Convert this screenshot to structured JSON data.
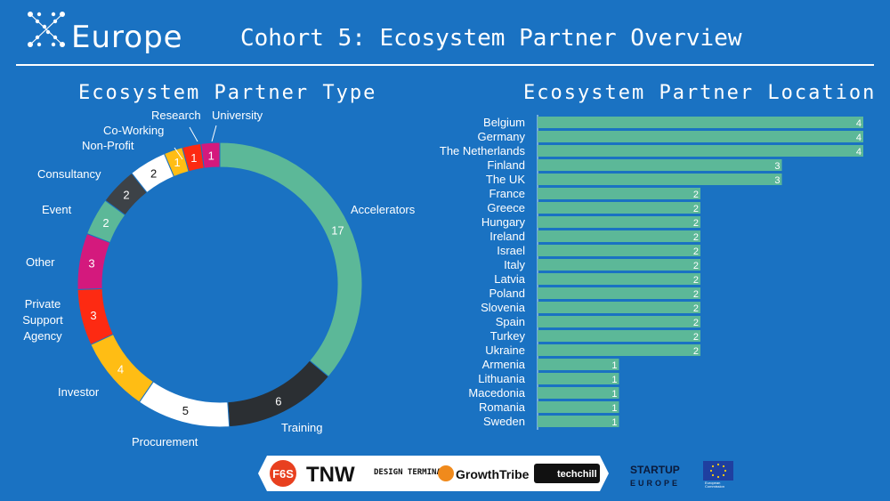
{
  "header": {
    "logo_text": "Europe",
    "title": "Cohort 5: Ecosystem Partner Overview"
  },
  "chart_data": [
    {
      "type": "pie",
      "title": "Ecosystem Partner Type",
      "donut": true,
      "categories": [
        "Accelerators",
        "Training",
        "Procurement",
        "Investor",
        "Private Support Agency",
        "Other",
        "Event",
        "Consultancy",
        "Non-Profit",
        "Co-Working",
        "Research",
        "University"
      ],
      "values": [
        17,
        6,
        5,
        4,
        3,
        3,
        2,
        2,
        2,
        1,
        1,
        1
      ],
      "colors": [
        "#5cb898",
        "#2b2f33",
        "#ffffff",
        "#ffbd14",
        "#fd2a12",
        "#d4197d",
        "#5cb898",
        "#3d4247",
        "#ffffff",
        "#ffbd14",
        "#fd2a12",
        "#d4197d"
      ]
    },
    {
      "type": "bar",
      "orientation": "horizontal",
      "title": "Ecosystem Partner Location",
      "categories": [
        "Belgium",
        "Germany",
        "The Netherlands",
        "Finland",
        "The UK",
        "France",
        "Greece",
        "Hungary",
        "Ireland",
        "Israel",
        "Italy",
        "Latvia",
        "Poland",
        "Slovenia",
        "Spain",
        "Turkey",
        "Ukraine",
        "Armenia",
        "Lithuania",
        "Macedonia",
        "Romania",
        "Sweden"
      ],
      "values": [
        4,
        4,
        4,
        3,
        3,
        2,
        2,
        2,
        2,
        2,
        2,
        2,
        2,
        2,
        2,
        2,
        2,
        1,
        1,
        1,
        1,
        1
      ],
      "color": "#5cb898",
      "xlim": [
        0,
        4
      ]
    }
  ],
  "footer": {
    "sponsor_logos": [
      "F6S",
      "TNW",
      "DESIGN TERMINAL",
      "GrowthTribe",
      "techchill"
    ],
    "startup_europe": [
      "STARTUP",
      "EUROPE"
    ],
    "eu_label": [
      "European",
      "Commission"
    ]
  },
  "icons": {
    "logo": "x-dots-logo-icon",
    "eu": "eu-flag-icon"
  }
}
